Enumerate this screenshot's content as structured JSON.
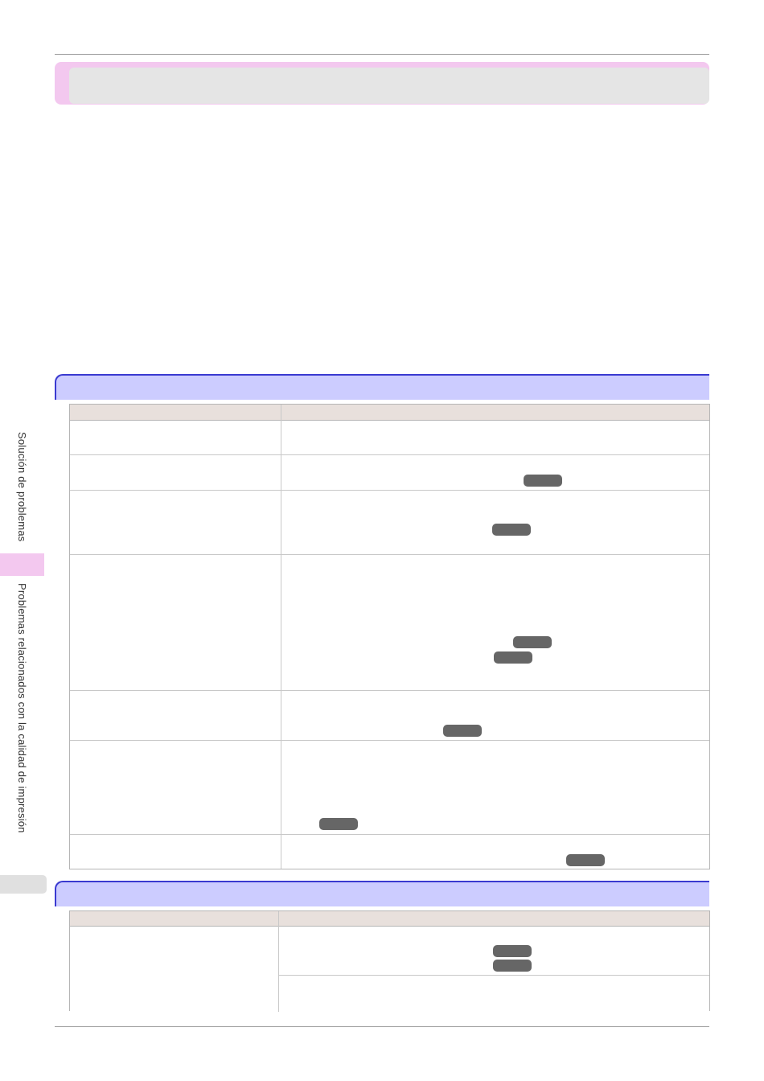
{
  "sidebar": {
    "section": "Solución de problemas",
    "subsection": "Problemas relacionados con la calidad de impresión"
  }
}
